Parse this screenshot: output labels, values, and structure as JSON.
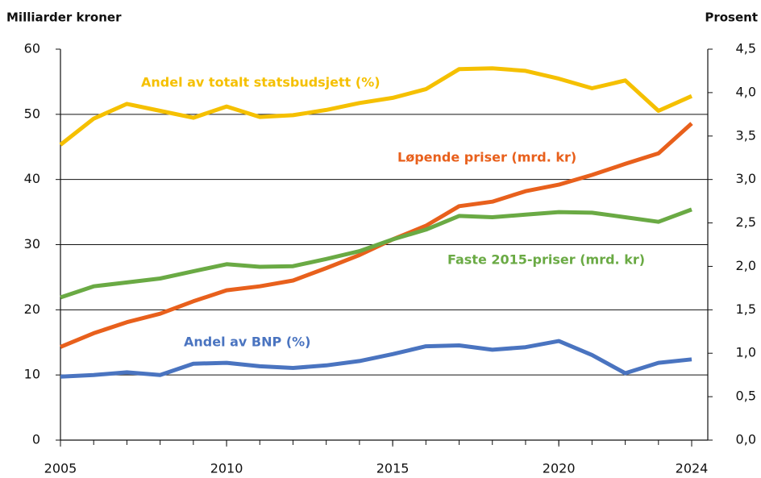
{
  "chart_data": {
    "type": "line",
    "y_label": "Milliarder kroner",
    "y2_label": "Prosent",
    "x": [
      2005,
      2006,
      2007,
      2008,
      2009,
      2010,
      2011,
      2012,
      2013,
      2014,
      2015,
      2016,
      2017,
      2018,
      2019,
      2020,
      2021,
      2022,
      2023,
      2024
    ],
    "xlim": [
      2005,
      2024
    ],
    "xticks": [
      2005,
      2010,
      2015,
      2020,
      2024
    ],
    "ylim": [
      0,
      60
    ],
    "yticks": [
      0,
      10,
      20,
      30,
      40,
      50,
      60
    ],
    "y2lim": [
      0,
      4.5
    ],
    "y2ticks": [
      {
        "value": 0,
        "label": "0,0"
      },
      {
        "value": 0.5,
        "label": "0,5"
      },
      {
        "value": 1,
        "label": "1,0"
      },
      {
        "value": 1.5,
        "label": "1,5"
      },
      {
        "value": 2,
        "label": "2,0"
      },
      {
        "value": 2.5,
        "label": "2,5"
      },
      {
        "value": 3,
        "label": "3,0"
      },
      {
        "value": 3.5,
        "label": "3,5"
      },
      {
        "value": 4,
        "label": "4,0"
      },
      {
        "value": 4.5,
        "label": "4,5"
      }
    ],
    "grid": true,
    "series": [
      {
        "name": "Andel av totalt statsbudsjett (%)",
        "color": "#f5c000",
        "axis": "y2",
        "values": [
          3.4,
          3.7,
          3.87,
          3.79,
          3.71,
          3.84,
          3.72,
          3.74,
          3.8,
          3.88,
          3.94,
          4.04,
          4.27,
          4.28,
          4.25,
          4.16,
          4.05,
          4.14,
          3.79,
          3.96
        ]
      },
      {
        "name": "Løpende priser (mrd. kr)",
        "color": "#e8601c",
        "values": [
          14.3,
          16.4,
          18.1,
          19.4,
          21.3,
          23.0,
          23.6,
          24.5,
          26.4,
          28.4,
          30.8,
          32.9,
          35.9,
          36.6,
          38.2,
          39.2,
          40.7,
          42.4,
          44.0,
          48.6
        ]
      },
      {
        "name": "Faste 2015-priser (mrd. kr)",
        "color": "#6aaa44",
        "values": [
          21.9,
          23.6,
          24.2,
          24.8,
          25.9,
          27.0,
          26.6,
          26.7,
          27.8,
          29.0,
          30.8,
          32.3,
          34.4,
          34.2,
          34.6,
          35.0,
          34.9,
          34.2,
          33.5,
          35.4
        ]
      },
      {
        "name": "Andel av BNP (%)",
        "color": "#4a74c0",
        "axis": "y2",
        "values": [
          0.73,
          0.75,
          0.78,
          0.75,
          0.88,
          0.89,
          0.85,
          0.83,
          0.86,
          0.91,
          0.99,
          1.08,
          1.09,
          1.04,
          1.07,
          1.14,
          0.98,
          0.77,
          0.89,
          0.93
        ]
      }
    ]
  }
}
